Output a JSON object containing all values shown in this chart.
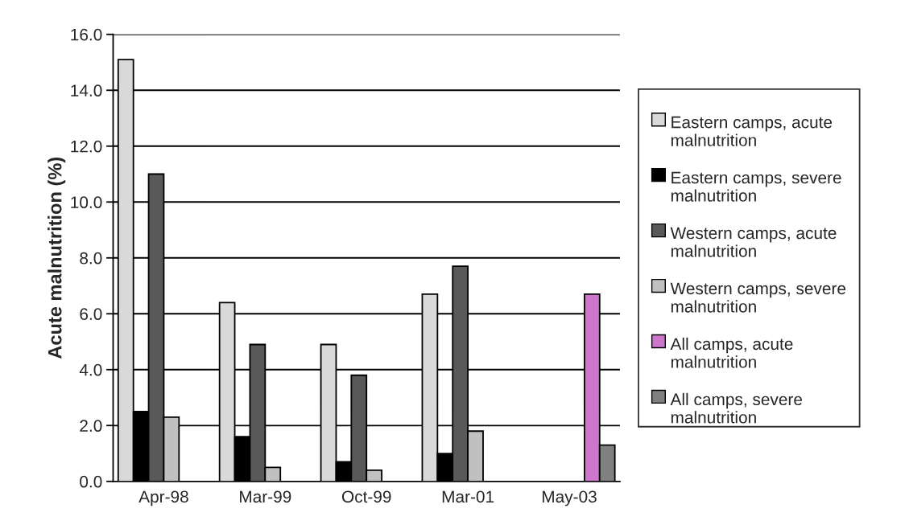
{
  "chart_data": {
    "type": "bar",
    "ylabel": "Acute malnutrition (%)",
    "categories": [
      "Apr-98",
      "Mar-99",
      "Oct-99",
      "Mar-01",
      "May-03"
    ],
    "series": [
      {
        "name": "Eastern camps, acute malnutrition",
        "color": "#d9d9d9",
        "values": [
          15.1,
          6.4,
          4.9,
          6.7,
          null
        ]
      },
      {
        "name": "Eastern camps, severe malnutrition",
        "color": "#000000",
        "values": [
          2.5,
          1.6,
          0.7,
          1.0,
          null
        ]
      },
      {
        "name": "Western camps, acute malnutrition",
        "color": "#595959",
        "values": [
          11.0,
          4.9,
          3.8,
          7.7,
          null
        ]
      },
      {
        "name": "Western camps, severe malnutrition",
        "color": "#c0c0c0",
        "values": [
          2.3,
          0.5,
          0.4,
          1.8,
          null
        ]
      },
      {
        "name": "All camps, acute malnutrition",
        "color": "#cc77cc",
        "values": [
          null,
          null,
          null,
          null,
          6.7
        ]
      },
      {
        "name": "All camps, severe malnutrition",
        "color": "#808080",
        "values": [
          null,
          null,
          null,
          null,
          1.3
        ]
      }
    ],
    "ylim": [
      0,
      16
    ],
    "yticks": [
      {
        "value": 0,
        "label": "0.0"
      },
      {
        "value": 2,
        "label": "2.0"
      },
      {
        "value": 4,
        "label": "4.0"
      },
      {
        "value": 6,
        "label": "6.0"
      },
      {
        "value": 8,
        "label": "8.0"
      },
      {
        "value": 10,
        "label": "10.0"
      },
      {
        "value": 12,
        "label": "12.0"
      },
      {
        "value": 14,
        "label": "14.0"
      },
      {
        "value": 16,
        "label": "16.0"
      }
    ],
    "grid": "y",
    "legend": "right"
  }
}
